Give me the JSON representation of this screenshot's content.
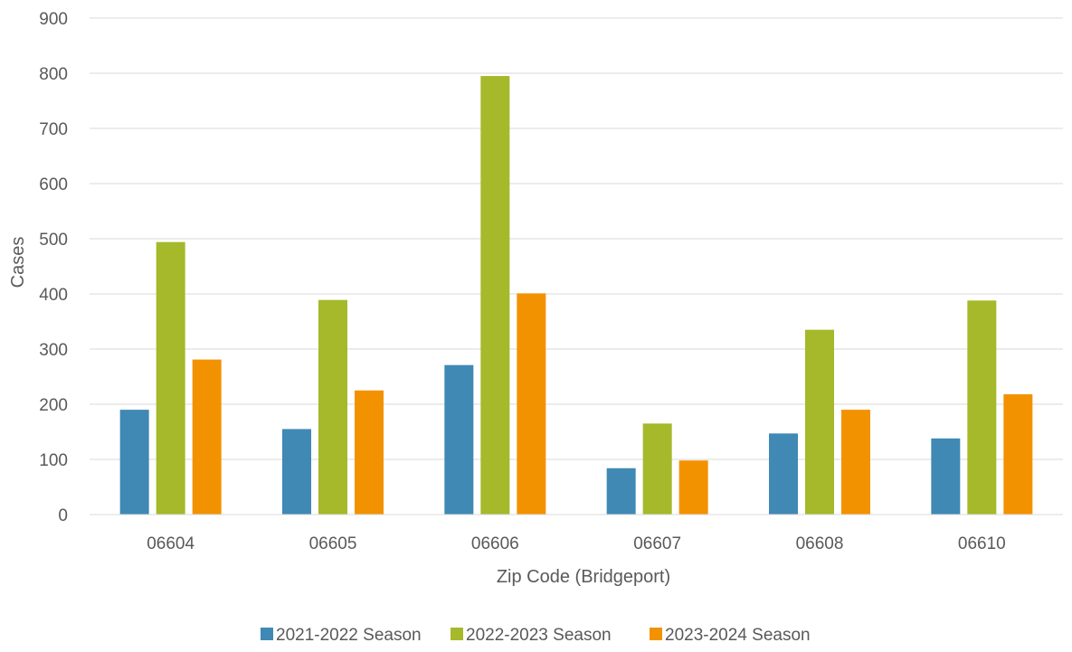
{
  "chart_data": {
    "type": "bar",
    "xlabel": "Zip Code (Bridgeport)",
    "ylabel": "Cases",
    "ylim": [
      0,
      900
    ],
    "yticks": [
      0,
      100,
      200,
      300,
      400,
      500,
      600,
      700,
      800,
      900
    ],
    "grid": true,
    "legend_position": "bottom",
    "categories": [
      "06604",
      "06605",
      "06606",
      "06607",
      "06608",
      "06610"
    ],
    "series": [
      {
        "name": "2021-2022 Season",
        "color": "#3f89b4",
        "values": [
          190,
          155,
          271,
          84,
          147,
          138
        ]
      },
      {
        "name": "2022-2023 Season",
        "color": "#a5b92a",
        "values": [
          494,
          389,
          795,
          165,
          335,
          388
        ]
      },
      {
        "name": "2023-2024 Season",
        "color": "#f39200",
        "values": [
          281,
          225,
          401,
          98,
          190,
          218
        ]
      }
    ]
  }
}
